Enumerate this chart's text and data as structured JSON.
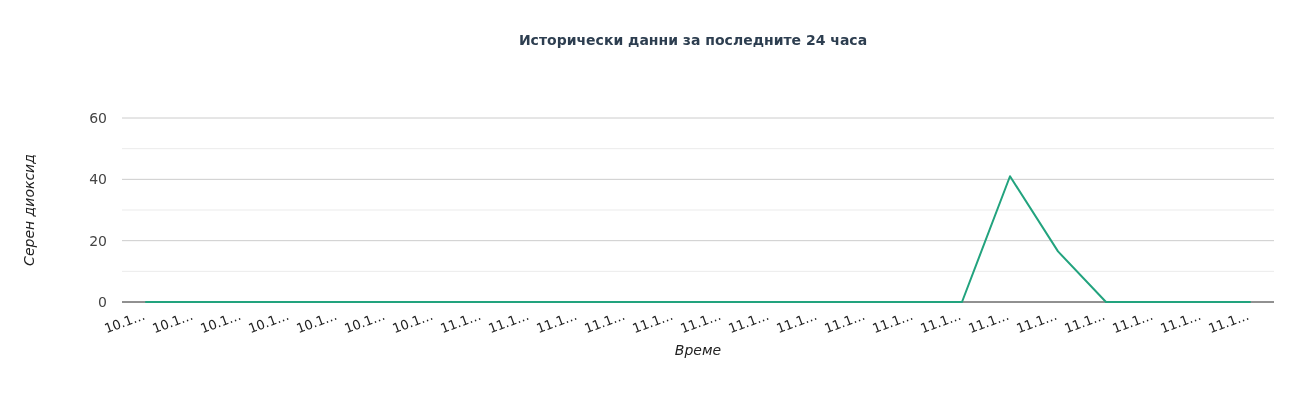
{
  "chart_data": {
    "type": "line",
    "title": "Исторически данни за последните 24 часа",
    "xlabel": "Време",
    "ylabel": "Серен диоксид",
    "categories": [
      "10.1…",
      "10.1…",
      "10.1…",
      "10.1…",
      "10.1…",
      "10.1…",
      "10.1…",
      "11.1…",
      "11.1…",
      "11.1…",
      "11.1…",
      "11.1…",
      "11.1…",
      "11.1…",
      "11.1…",
      "11.1…",
      "11.1…",
      "11.1…",
      "11.1…",
      "11.1…",
      "11.1…",
      "11.1…",
      "11.1…",
      "11.1…"
    ],
    "series": [
      {
        "color": "#22a37e",
        "values": [
          0,
          0,
          0,
          0,
          0,
          0,
          0,
          0,
          0,
          0,
          0,
          0,
          0,
          0,
          0,
          0,
          0,
          0,
          41,
          16.5,
          0,
          0,
          0,
          0
        ]
      }
    ],
    "ylim": [
      0,
      60
    ],
    "yticks": [
      0,
      {
        "value": 10,
        "label": null
      },
      20,
      {
        "value": 30,
        "label": null
      },
      40,
      {
        "value": 50,
        "label": null
      },
      60
    ],
    "grid": "y",
    "marker": "none",
    "line_style": "solid"
  }
}
